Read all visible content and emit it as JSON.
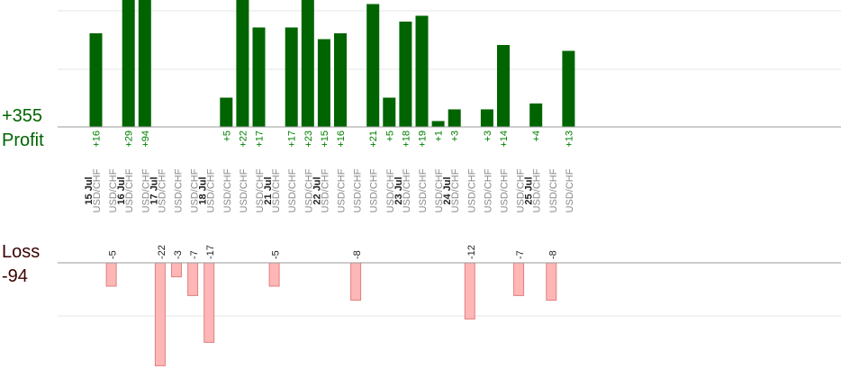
{
  "summary": {
    "profit_total": "+355",
    "profit_label": "Profit",
    "loss_label": "Loss",
    "loss_total": "-94"
  },
  "colors": {
    "profit_bar": "#006400",
    "profit_text": "#008000",
    "loss_bar": "#ffb6b6",
    "loss_bar_border": "#e08080",
    "date_text": "#222222",
    "symbol_text": "#8a8a8a",
    "grid": "#e6e6e6",
    "axis": "#9a9a9a"
  },
  "chart_data": {
    "type": "bar",
    "title": "",
    "grid": true,
    "profit_axis_max": 22,
    "loss_axis_max": 22,
    "dates": [
      "15 Jul",
      "16 Jul",
      "17 Jul",
      "18 Jul",
      "21 Jul",
      "22 Jul",
      "23 Jul",
      "24 Jul",
      "25 Jul"
    ],
    "categories": [
      {
        "date": "15 Jul",
        "symbol": "USD/CHF",
        "profit": 16,
        "loss": null
      },
      {
        "date": "15 Jul",
        "symbol": "USD/CHF",
        "profit": null,
        "loss": -5
      },
      {
        "date": "16 Jul",
        "symbol": "USD/CHF",
        "profit": 29,
        "loss": null
      },
      {
        "date": "16 Jul",
        "symbol": "USD/CHF",
        "profit": 94,
        "loss": null
      },
      {
        "date": "17 Jul",
        "symbol": "USD/CHF",
        "profit": null,
        "loss": -22
      },
      {
        "date": "17 Jul",
        "symbol": "USD/CHF",
        "profit": null,
        "loss": -3
      },
      {
        "date": "17 Jul",
        "symbol": "USD/CHF",
        "profit": null,
        "loss": -7
      },
      {
        "date": "18 Jul",
        "symbol": "USD/CHF",
        "profit": null,
        "loss": -17
      },
      {
        "date": "18 Jul",
        "symbol": "USD/CHF",
        "profit": 5,
        "loss": null
      },
      {
        "date": "18 Jul",
        "symbol": "USD/CHF",
        "profit": 22,
        "loss": null
      },
      {
        "date": "18 Jul",
        "symbol": "USD/CHF",
        "profit": 17,
        "loss": null
      },
      {
        "date": "21 Jul",
        "symbol": "USD/CHF",
        "profit": null,
        "loss": -5
      },
      {
        "date": "21 Jul",
        "symbol": "USD/CHF",
        "profit": 17,
        "loss": null
      },
      {
        "date": "21 Jul",
        "symbol": "USD/CHF",
        "profit": 23,
        "loss": null
      },
      {
        "date": "22 Jul",
        "symbol": "USD/CHF",
        "profit": 15,
        "loss": null
      },
      {
        "date": "22 Jul",
        "symbol": "USD/CHF",
        "profit": 16,
        "loss": null
      },
      {
        "date": "22 Jul",
        "symbol": "USD/CHF",
        "profit": null,
        "loss": -8
      },
      {
        "date": "22 Jul",
        "symbol": "USD/CHF",
        "profit": 21,
        "loss": null
      },
      {
        "date": "22 Jul",
        "symbol": "USD/CHF",
        "profit": 5,
        "loss": null
      },
      {
        "date": "23 Jul",
        "symbol": "USD/CHF",
        "profit": 18,
        "loss": null
      },
      {
        "date": "23 Jul",
        "symbol": "USD/CHF",
        "profit": 19,
        "loss": null
      },
      {
        "date": "23 Jul",
        "symbol": "USD/CHF",
        "profit": 1,
        "loss": null
      },
      {
        "date": "24 Jul",
        "symbol": "USD/CHF",
        "profit": 3,
        "loss": null
      },
      {
        "date": "24 Jul",
        "symbol": "USD/CHF",
        "profit": null,
        "loss": -12
      },
      {
        "date": "24 Jul",
        "symbol": "USD/CHF",
        "profit": 3,
        "loss": null
      },
      {
        "date": "24 Jul",
        "symbol": "USD/CHF",
        "profit": 14,
        "loss": null
      },
      {
        "date": "24 Jul",
        "symbol": "USD/CHF",
        "profit": null,
        "loss": -7
      },
      {
        "date": "25 Jul",
        "symbol": "USD/CHF",
        "profit": 4,
        "loss": null
      },
      {
        "date": "25 Jul",
        "symbol": "USD/CHF",
        "profit": null,
        "loss": -8
      },
      {
        "date": "25 Jul",
        "symbol": "USD/CHF",
        "profit": 13,
        "loss": null
      }
    ]
  }
}
